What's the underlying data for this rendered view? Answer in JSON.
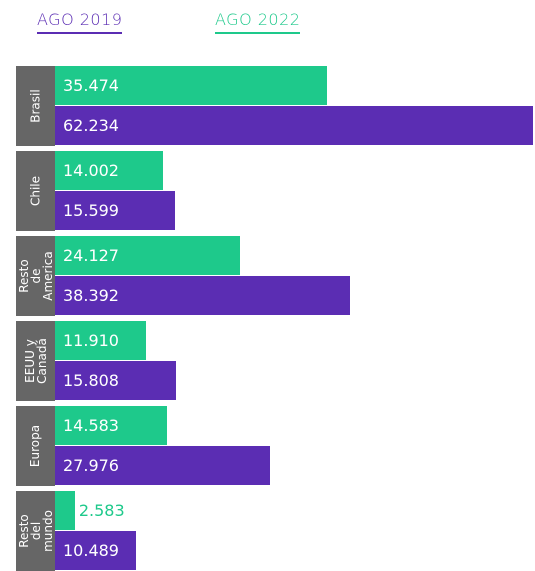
{
  "chart_data": {
    "type": "bar",
    "orientation": "horizontal",
    "categories": [
      "Brasil",
      "Chile",
      "Resto de America",
      "EEUU y Canadá",
      "Europa",
      "Resto del mundo"
    ],
    "series": [
      {
        "name": "AGO 2019",
        "color": "#5b2db3",
        "values": [
          62234,
          15599,
          38392,
          15808,
          27976,
          10489
        ],
        "value_labels": [
          "62.234",
          "15.599",
          "38.392",
          "15.808",
          "27.976",
          "10.489"
        ]
      },
      {
        "name": "AGO 2022",
        "color": "#1ec98b",
        "values": [
          35474,
          14002,
          24127,
          11910,
          14583,
          2583
        ],
        "value_labels": [
          "35.474",
          "14.002",
          "24.127",
          "11.910",
          "14.583",
          "2.583"
        ]
      }
    ]
  }
}
